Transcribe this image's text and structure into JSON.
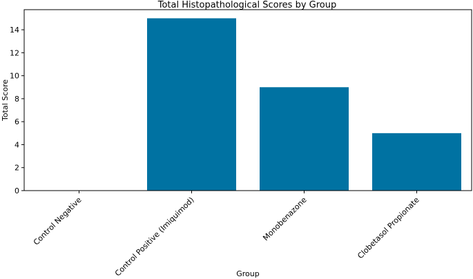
{
  "chart_data": {
    "type": "bar",
    "title": "Total Histopathological Scores by Group",
    "xlabel": "Group",
    "ylabel": "Total Score",
    "categories": [
      "Control Negative",
      "Control Positive (Imiquimod)",
      "Monobenazone",
      "Clobetasol Propionate"
    ],
    "values": [
      0,
      15,
      9,
      5
    ],
    "ylim": [
      0,
      15.75
    ],
    "yticks": [
      0,
      2,
      4,
      6,
      8,
      10,
      12,
      14
    ],
    "bar_color": "#0072a2",
    "grid": false,
    "legend": "none"
  }
}
